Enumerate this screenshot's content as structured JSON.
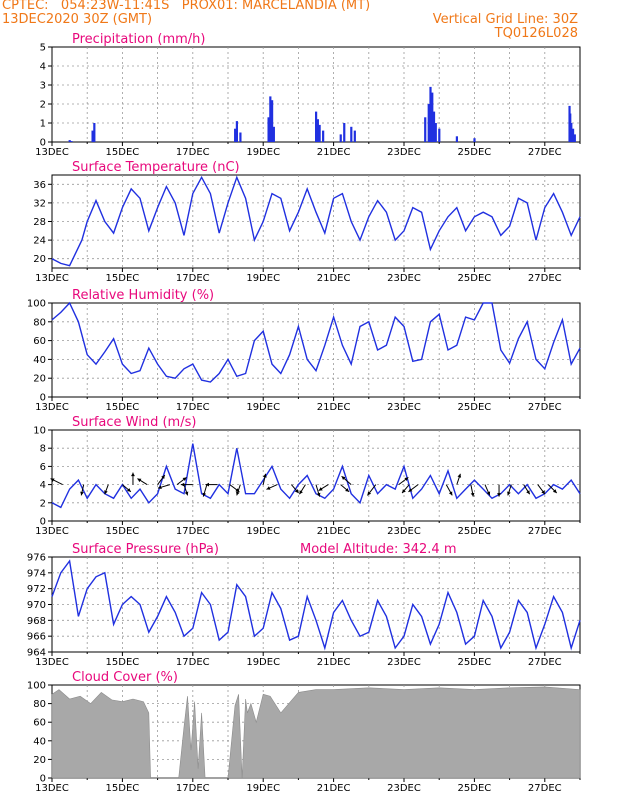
{
  "header": {
    "line1": "CPTEC:   054:23W-11:41S   PROX01: MARCELANDIA (MT)",
    "date": "13DEC2020 30Z (GMT)",
    "grid_note": "Vertical Grid Line: 30Z",
    "code": "TQ0126L028"
  },
  "colors": {
    "series": "#2030e0",
    "header": "#f07818",
    "title": "#e8087c",
    "cloud": "#a8a8a8"
  },
  "x_axis": {
    "start": "13DEC",
    "end": "28DEC",
    "unit": "days",
    "ticks": [
      "13DEC",
      "15DEC",
      "17DEC",
      "19DEC",
      "21DEC",
      "23DEC",
      "25DEC",
      "27DEC"
    ]
  },
  "chart_data": [
    {
      "type": "bar",
      "title": "Precipitation (mm/h)",
      "ylim": [
        0,
        5
      ],
      "yticks": [
        "0",
        "1",
        "2",
        "3",
        "4",
        "5"
      ],
      "x": [
        0.5,
        0.55,
        1.15,
        1.2,
        5.2,
        5.25,
        5.35,
        6.15,
        6.2,
        6.25,
        6.3,
        7.5,
        7.55,
        7.6,
        7.7,
        8.2,
        8.3,
        8.5,
        8.6,
        10.6,
        10.7,
        10.75,
        10.8,
        10.85,
        10.9,
        11.0,
        11.5,
        12.0,
        14.7,
        14.72,
        14.75,
        14.8,
        14.85
      ],
      "values": [
        0.1,
        0.05,
        0.6,
        1.0,
        0.7,
        1.1,
        0.5,
        1.3,
        2.4,
        2.2,
        0.8,
        1.6,
        1.2,
        0.9,
        0.6,
        0.4,
        1.0,
        0.8,
        0.6,
        1.3,
        2.0,
        2.9,
        2.6,
        1.6,
        1.0,
        0.7,
        0.3,
        0.2,
        1.9,
        1.5,
        1.0,
        0.7,
        0.4
      ]
    },
    {
      "type": "line",
      "title": "Surface Temperature (nC)",
      "ylim": [
        18,
        38
      ],
      "yticks": [
        "20",
        "24",
        "28",
        "32",
        "36"
      ],
      "x": [
        0,
        0.25,
        0.5,
        0.85,
        1.0,
        1.25,
        1.5,
        1.75,
        2.0,
        2.25,
        2.5,
        2.75,
        3.0,
        3.25,
        3.5,
        3.75,
        4.0,
        4.25,
        4.5,
        4.75,
        5.0,
        5.25,
        5.5,
        5.75,
        6.0,
        6.25,
        6.5,
        6.75,
        7.0,
        7.25,
        7.5,
        7.75,
        8.0,
        8.25,
        8.5,
        8.75,
        9.0,
        9.25,
        9.5,
        9.75,
        10.0,
        10.25,
        10.5,
        10.75,
        11.0,
        11.25,
        11.5,
        11.75,
        12.0,
        12.25,
        12.5,
        12.75,
        13.0,
        13.25,
        13.5,
        13.75,
        14.0,
        14.25,
        14.5,
        14.75,
        15.0
      ],
      "values": [
        20,
        19,
        18.5,
        24,
        28,
        32.5,
        28,
        25.5,
        31,
        35,
        33,
        26,
        31,
        35.5,
        32,
        25,
        34,
        37.5,
        34,
        25.5,
        32,
        37.5,
        33,
        24,
        28,
        34,
        33,
        26,
        30,
        35,
        30,
        25.5,
        33,
        34,
        28,
        24,
        29,
        32.5,
        30,
        24,
        26,
        31,
        30,
        22,
        26,
        29,
        31,
        26,
        29,
        30,
        29,
        25,
        27,
        33,
        32,
        24,
        31,
        34,
        30,
        25,
        29
      ]
    },
    {
      "type": "line",
      "title": "Relative Humidity (%)",
      "ylim": [
        0,
        100
      ],
      "yticks": [
        "0",
        "20",
        "40",
        "60",
        "80",
        "100"
      ],
      "x": [
        0,
        0.25,
        0.5,
        0.75,
        1.0,
        1.25,
        1.5,
        1.75,
        2.0,
        2.25,
        2.5,
        2.75,
        3.0,
        3.25,
        3.5,
        3.75,
        4.0,
        4.25,
        4.5,
        4.75,
        5.0,
        5.25,
        5.5,
        5.75,
        6.0,
        6.25,
        6.5,
        6.75,
        7.0,
        7.25,
        7.5,
        7.75,
        8.0,
        8.25,
        8.5,
        8.75,
        9.0,
        9.25,
        9.5,
        9.75,
        10.0,
        10.25,
        10.5,
        10.75,
        11.0,
        11.25,
        11.5,
        11.75,
        12.0,
        12.25,
        12.5,
        12.75,
        13.0,
        13.25,
        13.5,
        13.75,
        14.0,
        14.25,
        14.5,
        14.75,
        15.0
      ],
      "values": [
        82,
        90,
        100,
        80,
        45,
        35,
        48,
        62,
        35,
        25,
        28,
        52,
        35,
        22,
        20,
        30,
        35,
        18,
        16,
        25,
        40,
        22,
        25,
        60,
        70,
        35,
        25,
        45,
        75,
        40,
        28,
        55,
        85,
        55,
        35,
        75,
        80,
        50,
        55,
        85,
        75,
        38,
        40,
        80,
        88,
        50,
        55,
        85,
        82,
        100,
        100,
        50,
        36,
        62,
        80,
        40,
        30,
        58,
        82,
        35,
        52
      ]
    },
    {
      "type": "line",
      "title": "Surface Wind (m/s)",
      "ylim": [
        0,
        10
      ],
      "yticks": [
        "0",
        "2",
        "4",
        "6",
        "8",
        "10"
      ],
      "x": [
        0,
        0.25,
        0.5,
        0.75,
        1.0,
        1.25,
        1.5,
        1.75,
        2.0,
        2.25,
        2.5,
        2.75,
        3.0,
        3.25,
        3.5,
        3.75,
        4.0,
        4.25,
        4.5,
        4.75,
        5.0,
        5.25,
        5.5,
        5.75,
        6.0,
        6.25,
        6.5,
        6.75,
        7.0,
        7.25,
        7.5,
        7.75,
        8.0,
        8.25,
        8.5,
        8.75,
        9.0,
        9.25,
        9.5,
        9.75,
        10.0,
        10.25,
        10.5,
        10.75,
        11.0,
        11.25,
        11.5,
        11.75,
        12.0,
        12.25,
        12.5,
        12.75,
        13.0,
        13.25,
        13.5,
        13.75,
        14.0,
        14.25,
        14.5,
        14.75,
        15.0
      ],
      "values": [
        2,
        1.5,
        3.5,
        4.5,
        2.5,
        4,
        3,
        2.5,
        4,
        2.5,
        3.5,
        2,
        3,
        6,
        3.5,
        3,
        8.5,
        3,
        2.5,
        4,
        3,
        8,
        3,
        3,
        4.5,
        6,
        3.5,
        2.5,
        4,
        5,
        3,
        2.5,
        3.5,
        6,
        3,
        2,
        5,
        3,
        4,
        3.5,
        6,
        2.5,
        3.5,
        5,
        3,
        5.5,
        2.5,
        3.5,
        4.5,
        3.5,
        2.5,
        3,
        4,
        3,
        4,
        2.5,
        3,
        4,
        3.5,
        4.5,
        3
      ],
      "arrows": [
        {
          "x": 0.3,
          "dx": -1,
          "dy": -0.5
        },
        {
          "x": 0.9,
          "dx": -0.2,
          "dy": 0.9
        },
        {
          "x": 1.6,
          "dx": -0.3,
          "dy": 0.8
        },
        {
          "x": 2.0,
          "dx": 0.7,
          "dy": 0.6
        },
        {
          "x": 2.3,
          "dx": 0,
          "dy": -1
        },
        {
          "x": 2.7,
          "dx": -0.8,
          "dy": -0.5
        },
        {
          "x": 3.0,
          "dx": 0.6,
          "dy": -0.8
        },
        {
          "x": 3.35,
          "dx": -1,
          "dy": 0.3
        },
        {
          "x": 3.55,
          "dx": 0.8,
          "dy": -0.6
        },
        {
          "x": 3.75,
          "dx": 0.3,
          "dy": 0.9
        },
        {
          "x": 4.0,
          "dx": -1,
          "dy": 0
        },
        {
          "x": 4.4,
          "dx": -0.3,
          "dy": 1
        },
        {
          "x": 4.7,
          "dx": -1,
          "dy": 0
        },
        {
          "x": 5.05,
          "dx": 0.8,
          "dy": 0.6
        },
        {
          "x": 5.35,
          "dx": -0.3,
          "dy": 0.9
        },
        {
          "x": 6.0,
          "dx": 0.2,
          "dy": -0.9
        },
        {
          "x": 6.4,
          "dx": -0.9,
          "dy": 0.4
        },
        {
          "x": 6.8,
          "dx": 0.6,
          "dy": 0.7
        },
        {
          "x": 7.2,
          "dx": -0.5,
          "dy": 0.8
        },
        {
          "x": 7.5,
          "dx": 0.3,
          "dy": 1
        },
        {
          "x": 7.85,
          "dx": -0.8,
          "dy": 0.5
        },
        {
          "x": 8.2,
          "dx": 0.7,
          "dy": 0.6
        },
        {
          "x": 8.5,
          "dx": -0.8,
          "dy": -0.7
        },
        {
          "x": 9.2,
          "dx": -0.7,
          "dy": 0.9
        },
        {
          "x": 9.85,
          "dx": 0.8,
          "dy": -0.6
        },
        {
          "x": 10.15,
          "dx": -0.6,
          "dy": 0.7
        },
        {
          "x": 10.4,
          "dx": -0.8,
          "dy": 0.6
        },
        {
          "x": 11.2,
          "dx": 0.5,
          "dy": 0.9
        },
        {
          "x": 11.5,
          "dx": 0.3,
          "dy": -0.9
        },
        {
          "x": 11.9,
          "dx": 0.2,
          "dy": 1
        },
        {
          "x": 12.3,
          "dx": 0.4,
          "dy": 0.9
        },
        {
          "x": 12.7,
          "dx": 0,
          "dy": 1
        },
        {
          "x": 13.05,
          "dx": -0.3,
          "dy": 0.9
        },
        {
          "x": 13.4,
          "dx": 0.5,
          "dy": 0.8
        },
        {
          "x": 13.8,
          "dx": 0.6,
          "dy": 0.8
        },
        {
          "x": 14.1,
          "dx": 0.7,
          "dy": 0.7
        }
      ]
    },
    {
      "type": "line",
      "title": "Surface Pressure (hPa)",
      "ylim": [
        964,
        976
      ],
      "yticks": [
        "964",
        "966",
        "968",
        "970",
        "972",
        "974",
        "976"
      ],
      "x": [
        0,
        0.25,
        0.5,
        0.75,
        1.0,
        1.25,
        1.5,
        1.75,
        2.0,
        2.25,
        2.5,
        2.75,
        3.0,
        3.25,
        3.5,
        3.75,
        4.0,
        4.25,
        4.5,
        4.75,
        5.0,
        5.25,
        5.5,
        5.75,
        6.0,
        6.25,
        6.5,
        6.75,
        7.0,
        7.25,
        7.5,
        7.75,
        8.0,
        8.25,
        8.5,
        8.75,
        9.0,
        9.25,
        9.5,
        9.75,
        10.0,
        10.25,
        10.5,
        10.75,
        11.0,
        11.25,
        11.5,
        11.75,
        12.0,
        12.25,
        12.5,
        12.75,
        13.0,
        13.25,
        13.5,
        13.75,
        14.0,
        14.25,
        14.5,
        14.75,
        15.0
      ],
      "values": [
        971,
        974,
        975.5,
        968.5,
        972,
        973.5,
        974,
        967.5,
        970,
        971,
        970,
        966.5,
        968.5,
        971,
        969,
        966,
        967,
        971.5,
        970,
        965.5,
        966.5,
        972.5,
        971,
        966,
        967,
        971.5,
        969.5,
        965.5,
        966,
        971,
        968,
        964.5,
        969,
        970.5,
        968,
        966,
        966.5,
        970.5,
        968.5,
        964.5,
        966,
        970,
        968.5,
        965,
        967.5,
        971.5,
        969,
        965,
        966,
        970.5,
        968.5,
        964.5,
        966.5,
        970.5,
        969,
        964.5,
        967.5,
        971,
        969,
        964.5,
        968
      ]
    },
    {
      "type": "area",
      "title": "Cloud Cover (%)",
      "ylim": [
        0,
        100
      ],
      "yticks": [
        "0",
        "20",
        "40",
        "60",
        "80",
        "100"
      ],
      "x": [
        0,
        0.2,
        0.5,
        0.8,
        1.1,
        1.4,
        1.7,
        2.0,
        2.3,
        2.6,
        2.75,
        2.8,
        3.6,
        3.75,
        3.85,
        3.95,
        4.05,
        4.15,
        4.25,
        4.35,
        4.5,
        5.0,
        5.2,
        5.3,
        5.4,
        5.5,
        5.55,
        5.65,
        5.8,
        6.0,
        6.2,
        6.5,
        7.0,
        7.5,
        8.0,
        9.0,
        10.0,
        11.0,
        12.0,
        13.0,
        14.0,
        15.0
      ],
      "values": [
        90,
        95,
        85,
        88,
        80,
        92,
        84,
        82,
        85,
        82,
        70,
        0,
        0,
        55,
        88,
        30,
        82,
        10,
        70,
        0,
        0,
        0,
        78,
        90,
        0,
        85,
        70,
        80,
        60,
        90,
        88,
        70,
        92,
        95,
        95,
        97,
        95,
        97,
        95,
        97,
        98,
        95
      ]
    }
  ],
  "extra": {
    "model_altitude": "Model Altitude: 342.4 m"
  }
}
